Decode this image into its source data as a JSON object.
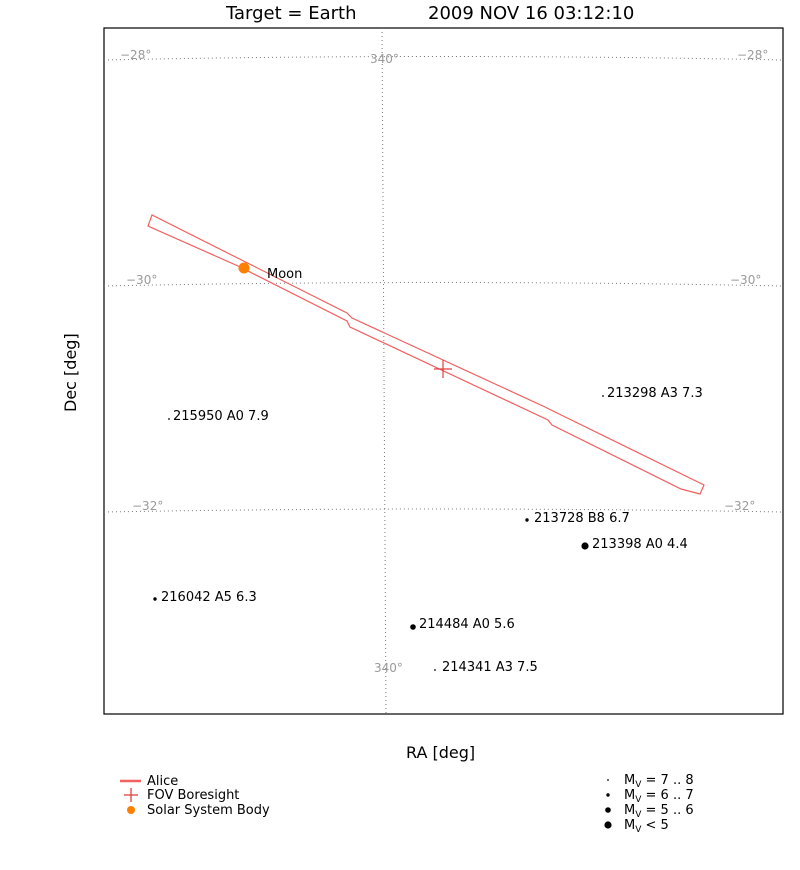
{
  "title": {
    "target": "Target = Earth",
    "datetime": "2009 NOV 16 03:12:10"
  },
  "axes": {
    "xlabel": "RA [deg]",
    "ylabel": "Dec [deg]"
  },
  "grid_labels": {
    "dec_minus28": "−28°",
    "dec_minus30": "−30°",
    "dec_minus32": "−32°",
    "ra_340": "340°"
  },
  "moon": {
    "label": "Moon"
  },
  "stars": [
    {
      "label": "213298 A3 7.3"
    },
    {
      "label": "215950 A0 7.9"
    },
    {
      "label": "213728 B8 6.7"
    },
    {
      "label": "213398 A0 4.4"
    },
    {
      "label": "216042 A5 6.3"
    },
    {
      "label": "214484 A0 5.6"
    },
    {
      "label": "214341 A3 7.5"
    }
  ],
  "legend": {
    "alice": "Alice",
    "boresight": "FOV Boresight",
    "solar_body": "Solar System Body",
    "mag_7_8": {
      "pre": "M",
      "sub": "V",
      "post": " = 7 .. 8"
    },
    "mag_6_7": {
      "pre": "M",
      "sub": "V",
      "post": " = 6 .. 7"
    },
    "mag_5_6": {
      "pre": "M",
      "sub": "V",
      "post": " = 5 .. 6"
    },
    "mag_lt5": {
      "pre": "M",
      "sub": "V",
      "post": " < 5"
    }
  },
  "colors": {
    "alice": "#f26060",
    "boresight": "#e04040",
    "solar_body": "#ff7f00",
    "grid": "#7a7a7a",
    "grid_label": "#9a9a9a"
  }
}
